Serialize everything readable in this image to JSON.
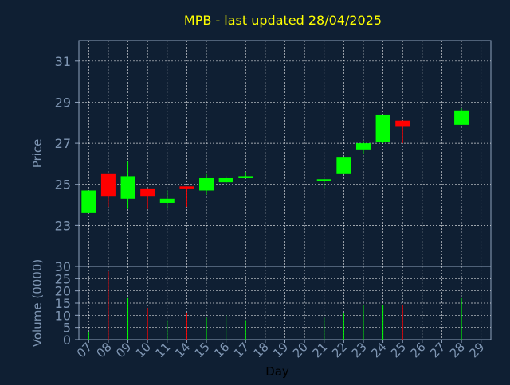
{
  "chart_data": {
    "type": "candlestick",
    "title": "MPB - last updated 28/04/2025",
    "price_panel": {
      "ylabel": "Price",
      "yticks": [
        "23",
        "25",
        "27",
        "29",
        "31"
      ],
      "ylim": [
        21.0,
        32.0
      ],
      "grid": true
    },
    "volume_panel": {
      "ylabel": "Volume (0000)",
      "yticks": [
        "0",
        "5",
        "10",
        "15",
        "20",
        "25",
        "30"
      ],
      "ylim": [
        0,
        30
      ],
      "grid": true
    },
    "xlabel": "Day",
    "x_ticks": [
      "07",
      "08",
      "09",
      "10",
      "11",
      "14",
      "15",
      "16",
      "17",
      "18",
      "19",
      "20",
      "21",
      "22",
      "23",
      "24",
      "25",
      "26",
      "27",
      "28",
      "29"
    ],
    "candles": [
      {
        "day": "07",
        "open": 23.6,
        "high": 24.7,
        "low": 23.6,
        "close": 24.7,
        "volume": 3
      },
      {
        "day": "08",
        "open": 25.5,
        "high": 25.5,
        "low": 23.9,
        "close": 24.4,
        "volume": 28
      },
      {
        "day": "09",
        "open": 24.3,
        "high": 26.1,
        "low": 23.8,
        "close": 25.4,
        "volume": 17
      },
      {
        "day": "10",
        "open": 24.8,
        "high": 24.8,
        "low": 23.8,
        "close": 24.4,
        "volume": 13
      },
      {
        "day": "11",
        "open": 24.1,
        "high": 24.7,
        "low": 23.8,
        "close": 24.3,
        "volume": 8
      },
      {
        "day": "14",
        "open": 24.9,
        "high": 24.9,
        "low": 23.9,
        "close": 24.8,
        "volume": 11
      },
      {
        "day": "15",
        "open": 24.7,
        "high": 25.5,
        "low": 24.5,
        "close": 25.3,
        "volume": 9
      },
      {
        "day": "16",
        "open": 25.1,
        "high": 25.4,
        "low": 25.0,
        "close": 25.3,
        "volume": 10
      },
      {
        "day": "17",
        "open": 25.3,
        "high": 25.6,
        "low": 25.3,
        "close": 25.4,
        "volume": 8
      },
      {
        "day": "21",
        "open": 25.15,
        "high": 25.25,
        "low": 24.8,
        "close": 25.25,
        "volume": 9
      },
      {
        "day": "22",
        "open": 25.5,
        "high": 26.3,
        "low": 25.5,
        "close": 26.3,
        "volume": 11
      },
      {
        "day": "23",
        "open": 26.7,
        "high": 27.1,
        "low": 26.5,
        "close": 27.0,
        "volume": 14
      },
      {
        "day": "24",
        "open": 27.05,
        "high": 28.4,
        "low": 27.0,
        "close": 28.4,
        "volume": 14
      },
      {
        "day": "25",
        "open": 28.1,
        "high": 28.1,
        "low": 27.0,
        "close": 27.8,
        "volume": 14
      },
      {
        "day": "28",
        "open": 27.9,
        "high": 28.7,
        "low": 27.9,
        "close": 28.6,
        "volume": 17
      }
    ],
    "colors": {
      "background": "#0f1f33",
      "frame": "#8fa3bd",
      "grid": "#ffffff",
      "title": "#ffff00",
      "axis_label": "#7f96b3",
      "tick_label": "#7f96b3",
      "up": "#00ff00",
      "down": "#ff0000",
      "axis_title_dark": "#000000"
    }
  }
}
